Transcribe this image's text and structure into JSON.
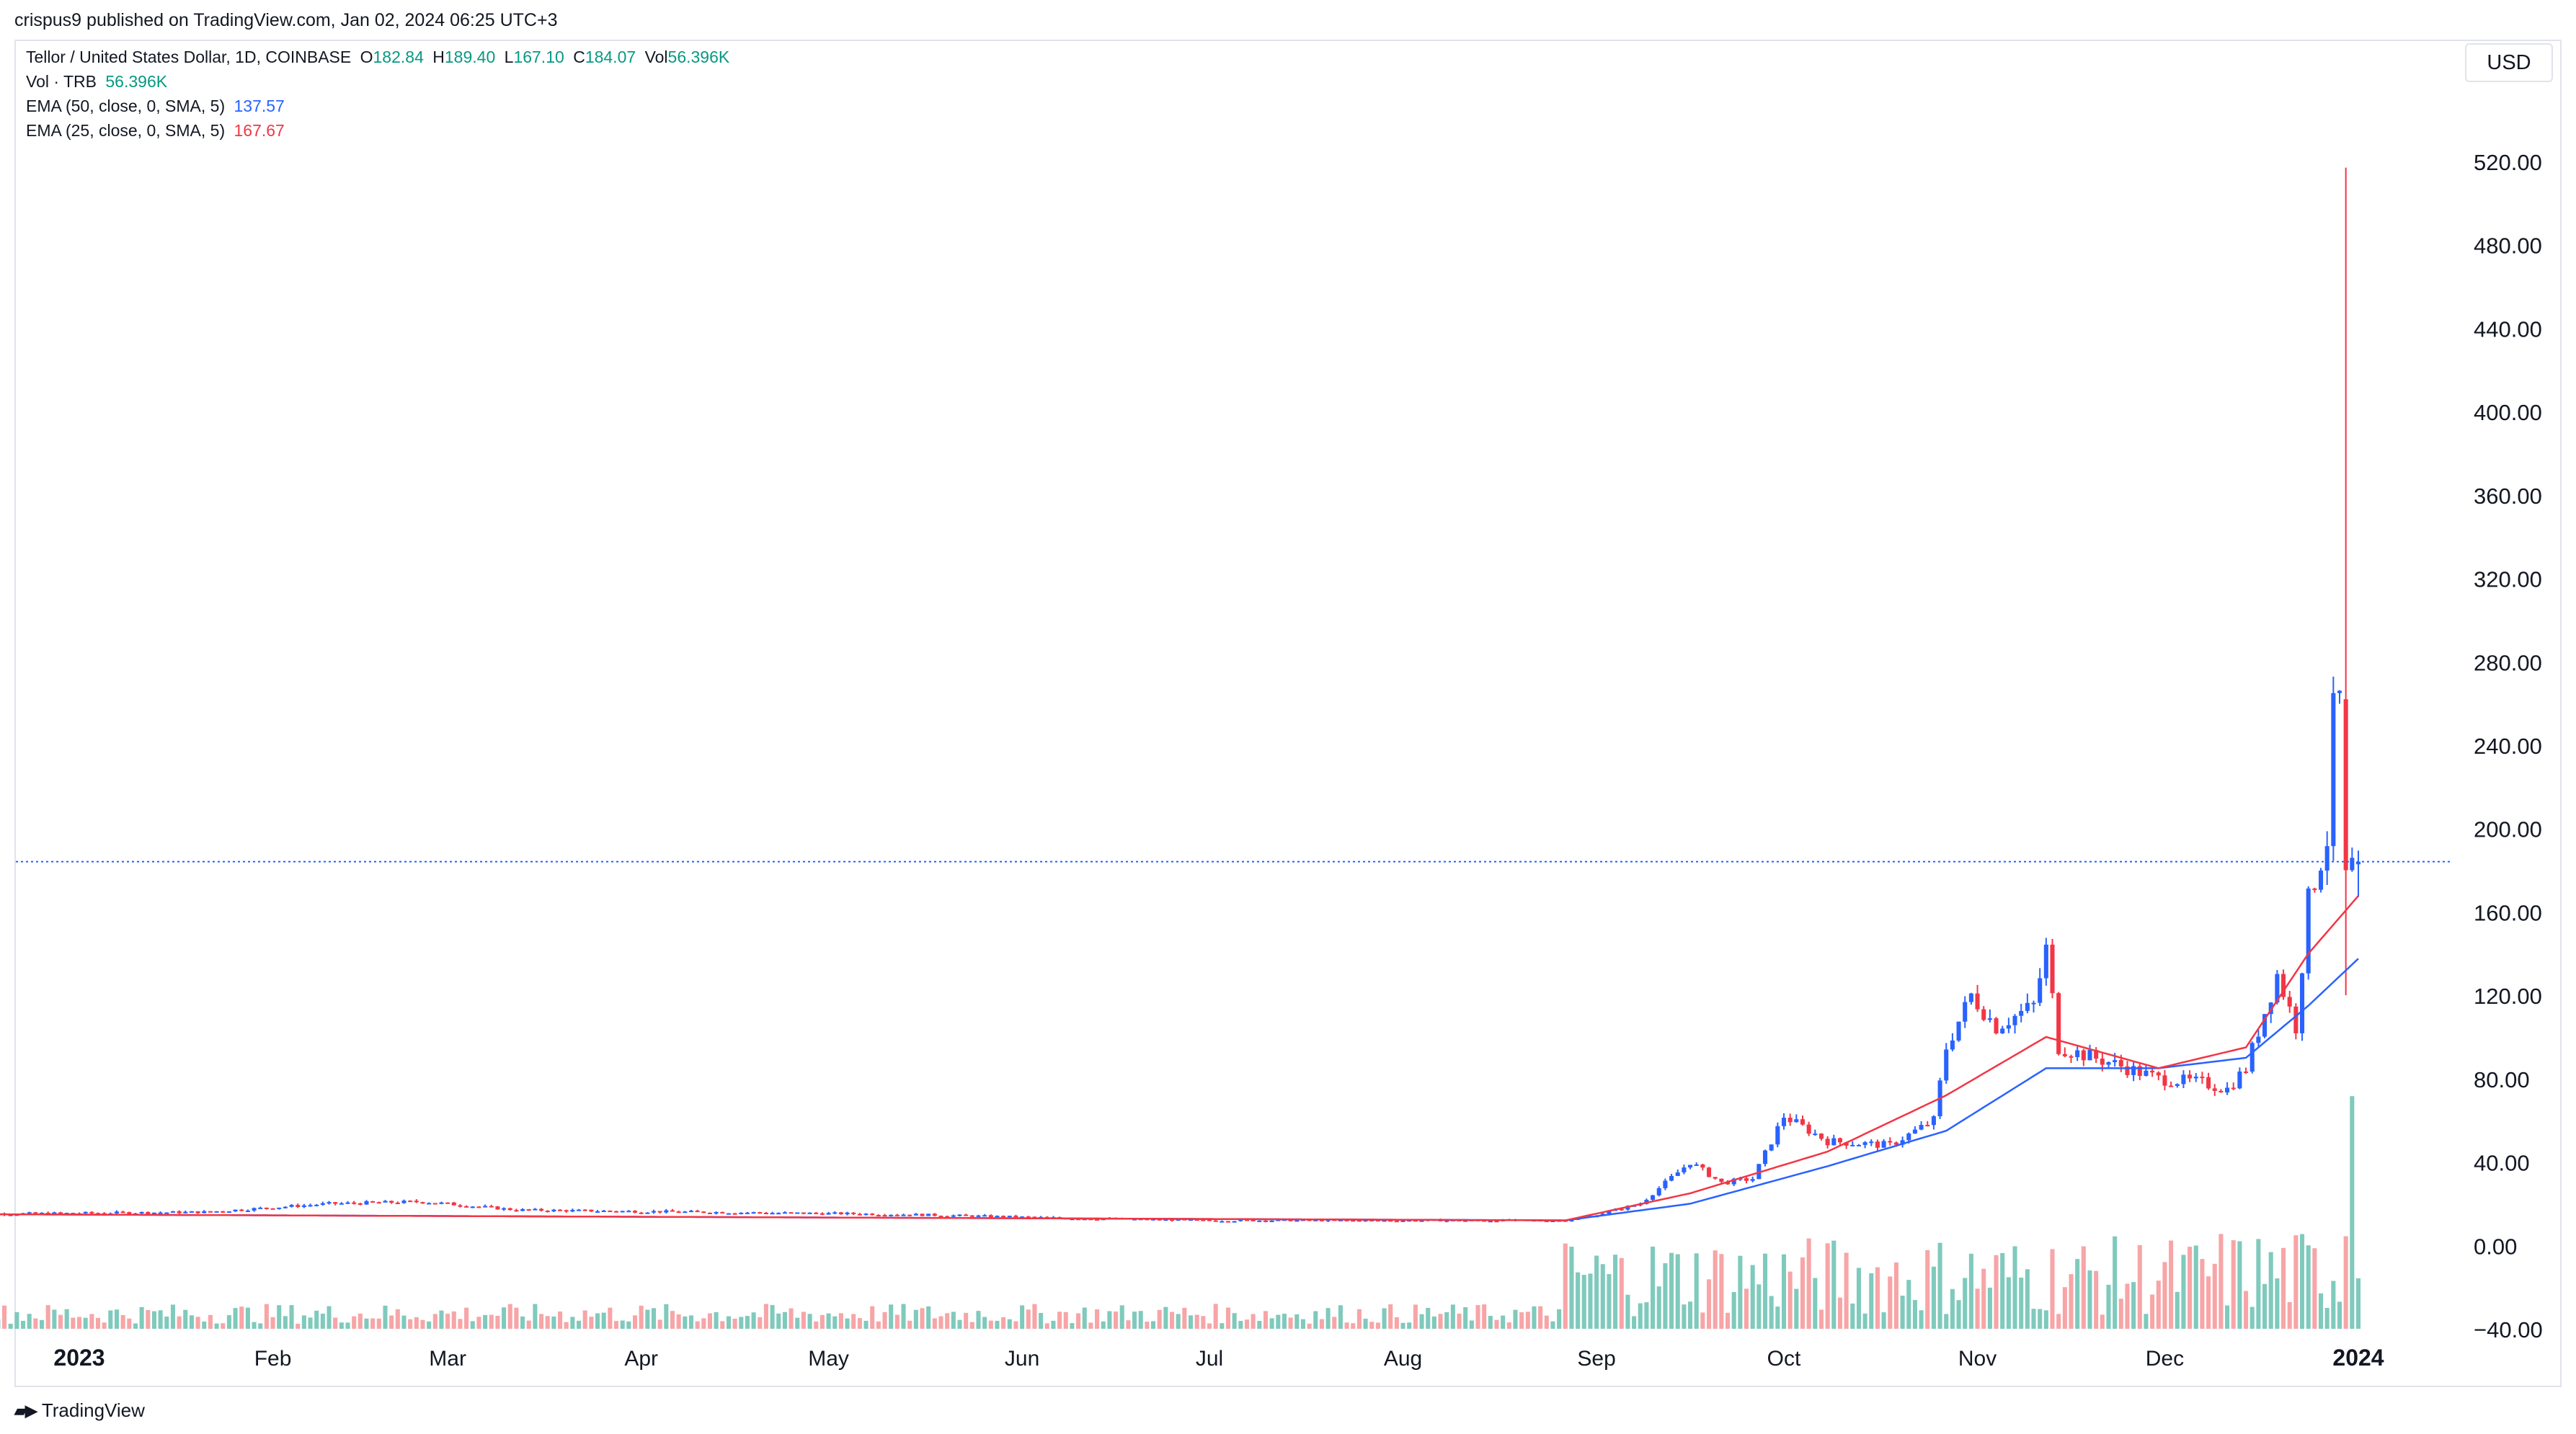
{
  "caption": "crispus9 published on TradingView.com, Jan 02, 2024 06:25 UTC+3",
  "legend": {
    "symbol": "Tellor / United States Dollar, 1D, COINBASE",
    "o_label": "O",
    "o_value": "182.84",
    "h_label": "H",
    "h_value": "189.40",
    "l_label": "L",
    "l_value": "167.10",
    "c_label": "C",
    "c_value": "184.07",
    "vol_label": "Vol",
    "vol_value": "56.396K",
    "vol_line_label": "Vol · TRB",
    "vol_line_value": "56.396K",
    "ema50_label": "EMA (50, close, 0, SMA, 5)",
    "ema50_value": "137.57",
    "ema25_label": "EMA (25, close, 0, SMA, 5)",
    "ema25_value": "167.67"
  },
  "currency": "USD",
  "brand": "TradingView",
  "colors": {
    "up": "#2962ff",
    "down": "#f23645",
    "vol_up": "#7fcabc",
    "vol_down": "#f7a5a7",
    "ema50": "#2962ff",
    "ema25": "#f23645",
    "green_text": "#089981",
    "price_line": "#2962ff"
  },
  "chart_data": {
    "type": "candlestick",
    "y_axis": {
      "range": [
        -40,
        540
      ],
      "ticks": [
        "520.00",
        "480.00",
        "440.00",
        "400.00",
        "360.00",
        "320.00",
        "280.00",
        "240.00",
        "200.00",
        "160.00",
        "120.00",
        "80.00",
        "40.00",
        "0.00",
        "−40.00"
      ],
      "tick_values": [
        520,
        480,
        440,
        400,
        360,
        320,
        280,
        240,
        200,
        160,
        120,
        80,
        40,
        0,
        -40
      ]
    },
    "x_axis": {
      "labels": [
        "2023",
        "Feb",
        "Mar",
        "Apr",
        "May",
        "Jun",
        "Jul",
        "Aug",
        "Sep",
        "Oct",
        "Nov",
        "Dec",
        "2024"
      ],
      "label_days": [
        0,
        31,
        59,
        90,
        120,
        151,
        181,
        212,
        243,
        273,
        304,
        334,
        365
      ],
      "bold": [
        "2023",
        "2024"
      ],
      "range_days": [
        -19,
        381
      ]
    },
    "last_price": 184.07,
    "candles_day_range": [
      -19,
      365
    ],
    "ohlc_keyframes": [
      [
        -19,
        15
      ],
      [
        20,
        16
      ],
      [
        40,
        20
      ],
      [
        55,
        21
      ],
      [
        70,
        17
      ],
      [
        100,
        16
      ],
      [
        130,
        15
      ],
      [
        160,
        13
      ],
      [
        180,
        12
      ],
      [
        210,
        12
      ],
      [
        238,
        12
      ],
      [
        242,
        14
      ],
      [
        250,
        20
      ],
      [
        258,
        40
      ],
      [
        263,
        30
      ],
      [
        268,
        32
      ],
      [
        273,
        62
      ],
      [
        280,
        50
      ],
      [
        290,
        48
      ],
      [
        297,
        60
      ],
      [
        299,
        95
      ],
      [
        303,
        120
      ],
      [
        307,
        105
      ],
      [
        313,
        115
      ],
      [
        315,
        142
      ],
      [
        317,
        95
      ],
      [
        325,
        88
      ],
      [
        333,
        80
      ],
      [
        340,
        78
      ],
      [
        344,
        75
      ],
      [
        347,
        85
      ],
      [
        352,
        130
      ],
      [
        355,
        105
      ],
      [
        357,
        165
      ],
      [
        359,
        185
      ],
      [
        360,
        195
      ],
      [
        361,
        255
      ],
      [
        362,
        262
      ],
      [
        363,
        262
      ],
      [
        364,
        182
      ],
      [
        365,
        184
      ]
    ],
    "spike": {
      "day": 363,
      "high": 517
    },
    "last_candle": {
      "day": 365,
      "open": 182.84,
      "high": 189.4,
      "low": 167.1,
      "close": 184.07
    },
    "ema50_keyframes": [
      [
        -19,
        15
      ],
      [
        238,
        12
      ],
      [
        258,
        20
      ],
      [
        280,
        38
      ],
      [
        299,
        55
      ],
      [
        315,
        85
      ],
      [
        333,
        85
      ],
      [
        347,
        90
      ],
      [
        357,
        115
      ],
      [
        365,
        137.57
      ]
    ],
    "ema25_keyframes": [
      [
        -19,
        15
      ],
      [
        238,
        12
      ],
      [
        258,
        25
      ],
      [
        280,
        45
      ],
      [
        299,
        72
      ],
      [
        315,
        100
      ],
      [
        333,
        85
      ],
      [
        347,
        95
      ],
      [
        357,
        140
      ],
      [
        365,
        167.67
      ]
    ],
    "volume": {
      "scale_max": 56.396,
      "baseline": -40,
      "bar_height_range": [
        -40,
        80
      ],
      "spike_day": 364,
      "spike_value": 56.396,
      "prior_spike_value": 22
    }
  }
}
